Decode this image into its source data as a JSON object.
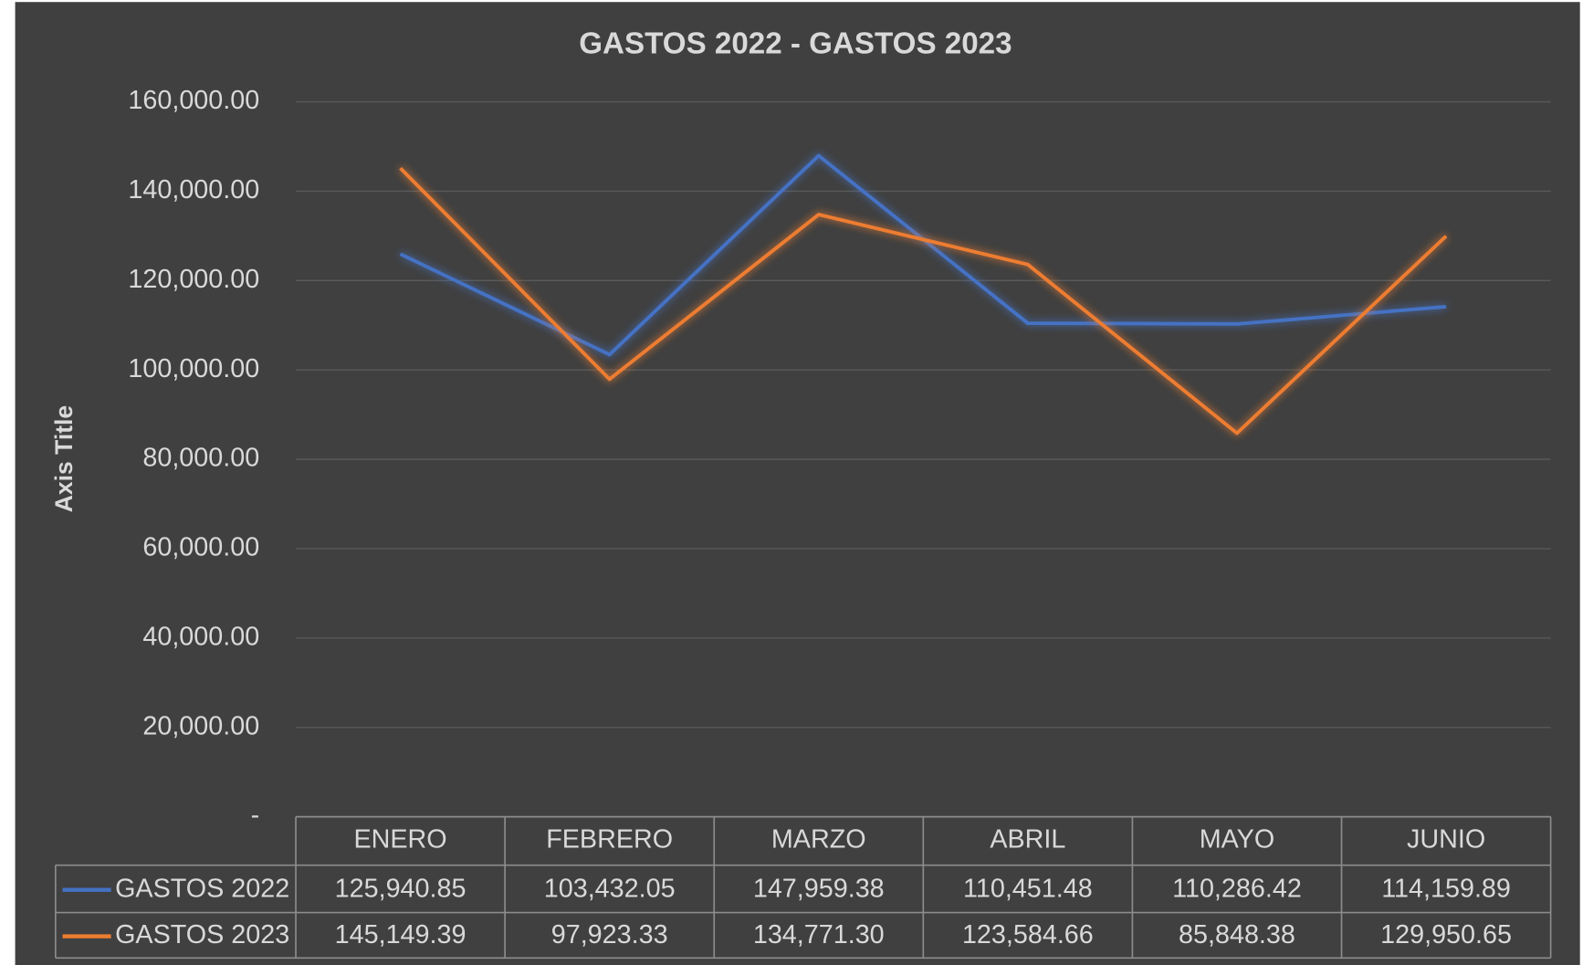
{
  "chart_data": {
    "type": "line",
    "title": "GASTOS 2022 - GASTOS 2023",
    "y_label": "Axis Title",
    "categories": [
      "ENERO",
      "FEBRERO",
      "MARZO",
      "ABRIL",
      "MAYO",
      "JUNIO"
    ],
    "series": [
      {
        "name": "GASTOS 2022",
        "color": "#4472c4",
        "values": [
          125940.85,
          103432.05,
          147959.38,
          110451.48,
          110286.42,
          114159.89
        ],
        "value_labels": [
          "125,940.85",
          "103,432.05",
          "147,959.38",
          "110,451.48",
          "110,286.42",
          "114,159.89"
        ]
      },
      {
        "name": "GASTOS 2023",
        "color": "#ed7d31",
        "values": [
          145149.39,
          97923.33,
          134771.3,
          123584.66,
          85848.38,
          129950.65
        ],
        "value_labels": [
          "145,149.39",
          "97,923.33",
          "134,771.30",
          "123,584.66",
          "85,848.38",
          "129,950.65"
        ]
      }
    ],
    "ylim": [
      0,
      160000
    ],
    "yticks": [
      {
        "value": 0,
        "label": "-"
      },
      {
        "value": 20000,
        "label": "20,000.00"
      },
      {
        "value": 40000,
        "label": "40,000.00"
      },
      {
        "value": 60000,
        "label": "60,000.00"
      },
      {
        "value": 80000,
        "label": "80,000.00"
      },
      {
        "value": 100000,
        "label": "100,000.00"
      },
      {
        "value": 120000,
        "label": "120,000.00"
      },
      {
        "value": 140000,
        "label": "140,000.00"
      },
      {
        "value": 160000,
        "label": "160,000.00"
      }
    ],
    "grid": true
  }
}
